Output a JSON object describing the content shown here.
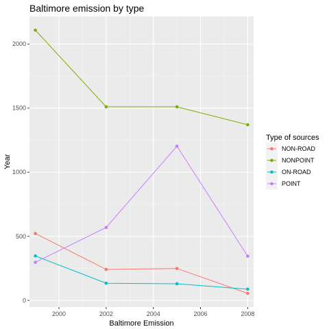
{
  "chart_data": {
    "type": "line",
    "title": "Baltimore emission by type",
    "xlabel": "Baltimore Emission",
    "ylabel": "Year",
    "x": [
      1999,
      2002,
      2005,
      2008
    ],
    "x_ticks": [
      2000,
      2002,
      2004,
      2006,
      2008
    ],
    "x_tick_labels": [
      "2000",
      "2002",
      "2004",
      "2006",
      "2008"
    ],
    "y_ticks": [
      0,
      500,
      1000,
      1500,
      2000
    ],
    "y_tick_labels": [
      "0",
      "500",
      "1000",
      "1500",
      "2000"
    ],
    "xlim": [
      1998.75,
      2008.25
    ],
    "ylim": [
      -52,
      2215
    ],
    "grid": true,
    "legend": {
      "title": "Type of sources",
      "placement": "right"
    },
    "series": [
      {
        "name": "NON-ROAD",
        "color": "#F8766D",
        "values": [
          522,
          242,
          249,
          55
        ]
      },
      {
        "name": "NONPOINT",
        "color": "#7CAE00",
        "values": [
          2108,
          1510,
          1510,
          1370
        ]
      },
      {
        "name": "ON-ROAD",
        "color": "#00BFC4",
        "values": [
          347,
          134,
          130,
          88
        ]
      },
      {
        "name": "POINT",
        "color": "#C77CFF",
        "values": [
          297,
          569,
          1203,
          345
        ]
      }
    ]
  }
}
